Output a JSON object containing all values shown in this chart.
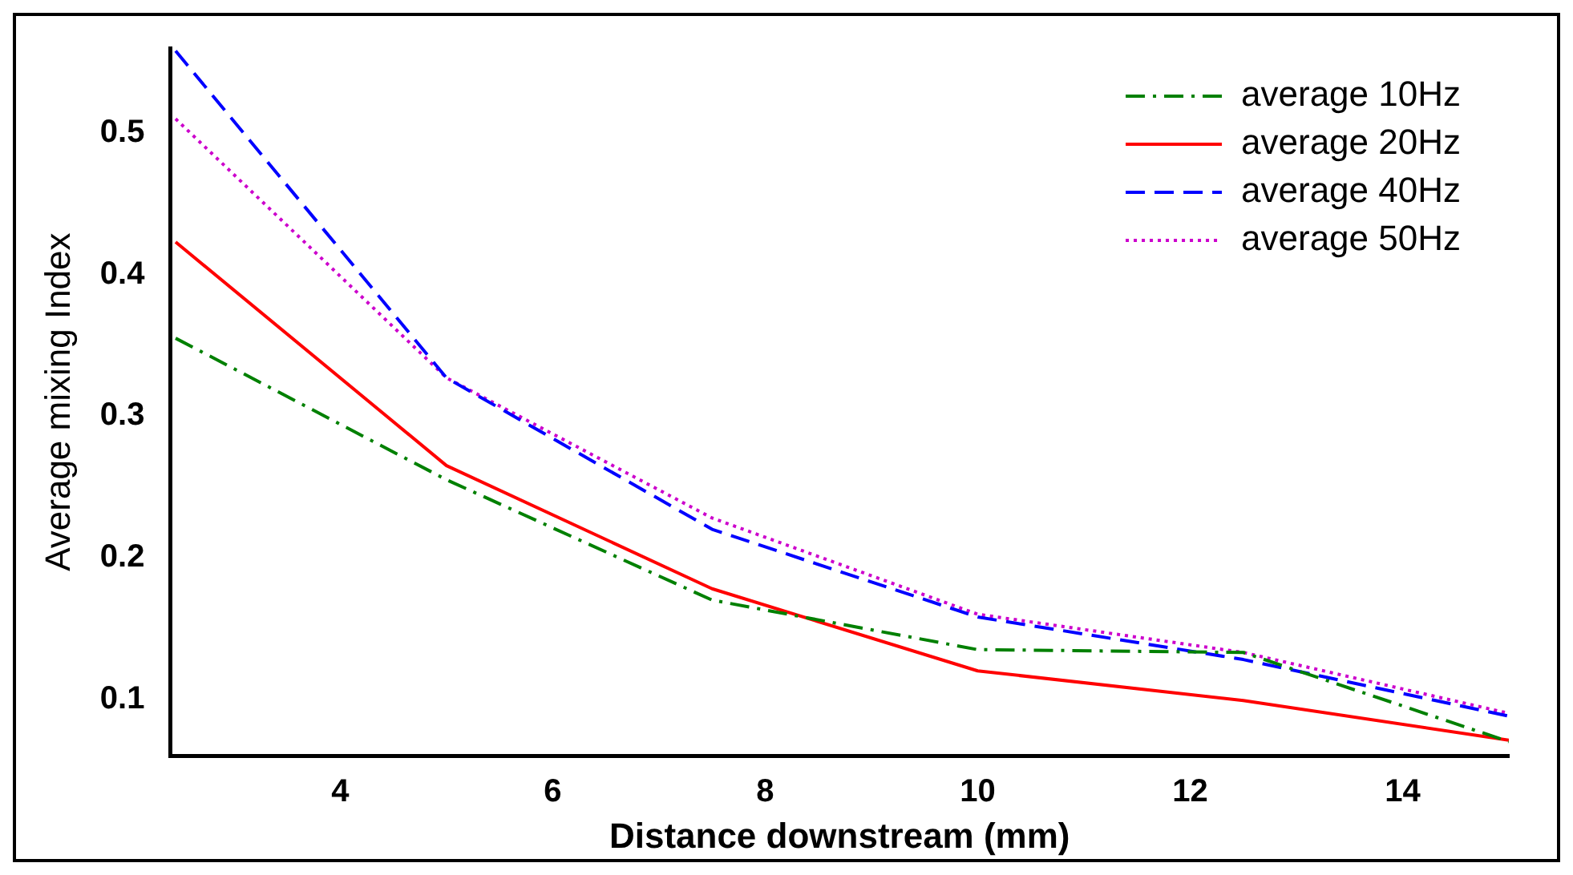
{
  "chart_data": {
    "type": "line",
    "xlabel": "Distance downstream (mm)",
    "ylabel": "Average mixing Index",
    "xlim": [
      2.4,
      15
    ],
    "xticks": [
      4,
      6,
      8,
      10,
      12,
      14
    ],
    "ylim": [
      0.06,
      0.56
    ],
    "yticks": [
      0.1,
      0.2,
      0.3,
      0.4,
      0.5
    ],
    "grid": false,
    "legend": "top right",
    "marker": "none",
    "series": [
      {
        "name": "average 10Hz",
        "color": "#008000",
        "line_style": "dashdot",
        "x": [
          2.45,
          5,
          7.5,
          10,
          12.5,
          15
        ],
        "values": [
          0.355,
          0.255,
          0.17,
          0.135,
          0.133,
          0.07
        ]
      },
      {
        "name": "average 20Hz",
        "color": "#ff0000",
        "line_style": "solid",
        "x": [
          2.45,
          5,
          7.5,
          10,
          12.5,
          15
        ],
        "values": [
          0.423,
          0.265,
          0.178,
          0.12,
          0.099,
          0.071
        ]
      },
      {
        "name": "average 40Hz",
        "color": "#0000ff",
        "line_style": "dashed",
        "x": [
          2.45,
          5,
          7.5,
          10,
          12.5,
          15
        ],
        "values": [
          0.558,
          0.327,
          0.22,
          0.158,
          0.128,
          0.088
        ]
      },
      {
        "name": "average 50Hz",
        "color": "#cc00cc",
        "line_style": "dotted",
        "x": [
          2.45,
          5,
          7.5,
          10,
          12.5,
          15
        ],
        "values": [
          0.51,
          0.327,
          0.228,
          0.16,
          0.133,
          0.09
        ]
      }
    ]
  }
}
